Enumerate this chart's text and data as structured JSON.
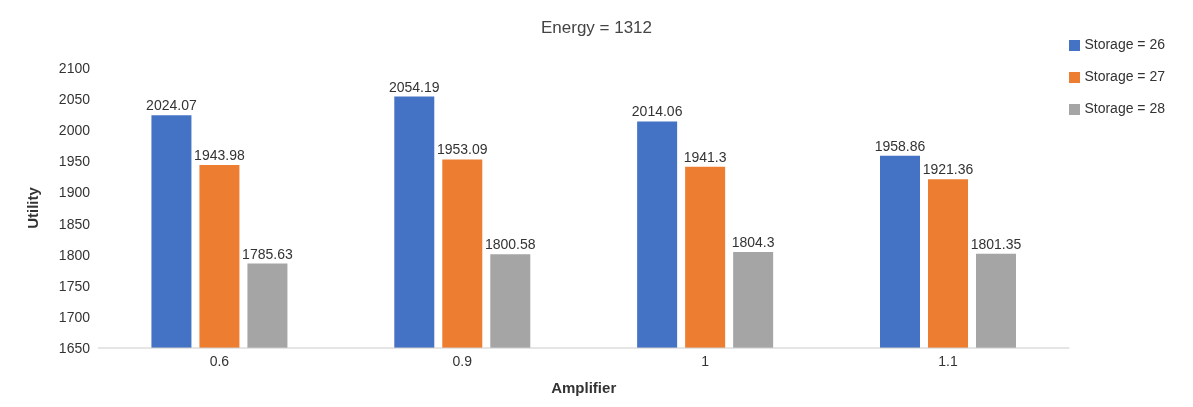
{
  "chart_data": {
    "type": "bar",
    "title": "Energy = 1312",
    "xlabel": "Amplifier",
    "ylabel": "Utility",
    "categories": [
      "0.6",
      "0.9",
      "1",
      "1.1"
    ],
    "series": [
      {
        "name": "Storage = 26",
        "color": "#4472c4",
        "values": [
          2024.07,
          2054.19,
          2014.06,
          1958.86
        ]
      },
      {
        "name": "Storage = 27",
        "color": "#ed7d31",
        "values": [
          1943.98,
          1953.09,
          1941.3,
          1921.36
        ]
      },
      {
        "name": "Storage = 28",
        "color": "#a5a5a5",
        "values": [
          1785.63,
          1800.58,
          1804.3,
          1801.35
        ]
      }
    ],
    "ylim": [
      1650,
      2100
    ],
    "yticks": [
      1650,
      1700,
      1750,
      1800,
      1850,
      1900,
      1950,
      2000,
      2050,
      2100
    ],
    "grid": false,
    "legend": "top right",
    "data_labels": true
  }
}
